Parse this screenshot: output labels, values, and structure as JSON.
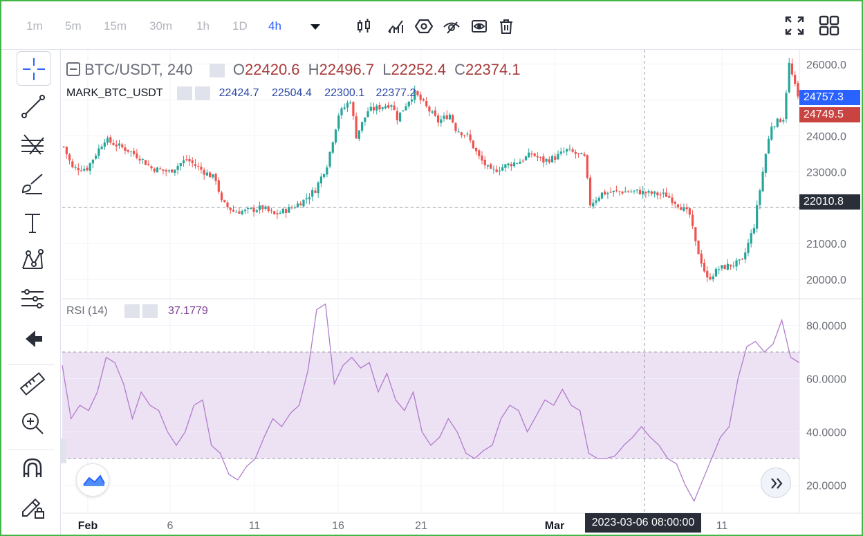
{
  "toolbar": {
    "timeframes": [
      "1m",
      "5m",
      "15m",
      "30m",
      "1h",
      "1D",
      "4h"
    ],
    "active_timeframe": "4h"
  },
  "legend": {
    "symbol": "BTC/USDT, 240",
    "open_label": "O",
    "open": "22420.6",
    "high_label": "H",
    "high": "22496.7",
    "low_label": "L",
    "low": "22252.4",
    "close_label": "C",
    "close": "22374.1",
    "mark_name": "MARK_BTC_USDT",
    "mark_values": [
      "22424.7",
      "22504.4",
      "22300.1",
      "22377.2"
    ]
  },
  "rsi": {
    "name": "RSI (14)",
    "value": "37.1779"
  },
  "price_tags": {
    "mark": "24757.3",
    "last": "24749.5",
    "crosshair": "22010.8",
    "crosshair_time": "2023-03-06 08:00:00"
  },
  "colors": {
    "up": "#26a69a",
    "down": "#ef5350",
    "rsi_line": "#b07ccb",
    "rsi_band": "#ede1f4",
    "accent": "#2962ff",
    "legend_red": "#a83b3b",
    "legend_blue": "#2c48a8",
    "rsi_value": "#7e3f98"
  },
  "chart_data": [
    {
      "type": "candlestick",
      "title": "BTC/USDT, 240",
      "x_labels": [
        "Feb",
        "6",
        "11",
        "16",
        "21",
        "Mar",
        "11"
      ],
      "y_ticks": [
        20000,
        21000,
        22000,
        23000,
        24000,
        25000,
        26000
      ],
      "y_tick_labels": [
        "20000.0",
        "21000.0",
        "23000.0",
        "24000.0",
        "26000.0"
      ],
      "ylim": [
        19500,
        26400
      ],
      "grid": true,
      "close_path": [
        [
          0,
          23700
        ],
        [
          3,
          23100
        ],
        [
          8,
          23100
        ],
        [
          14,
          23900
        ],
        [
          22,
          23600
        ],
        [
          26,
          23400
        ],
        [
          30,
          23100
        ],
        [
          36,
          23000
        ],
        [
          42,
          23350
        ],
        [
          48,
          23000
        ],
        [
          52,
          22800
        ],
        [
          54,
          22150
        ],
        [
          58,
          21900
        ],
        [
          62,
          21900
        ],
        [
          68,
          22000
        ],
        [
          72,
          21800
        ],
        [
          78,
          22000
        ],
        [
          82,
          22200
        ],
        [
          86,
          22500
        ],
        [
          90,
          23200
        ],
        [
          94,
          24600
        ],
        [
          98,
          25000
        ],
        [
          100,
          24000
        ],
        [
          104,
          24700
        ],
        [
          108,
          24800
        ],
        [
          112,
          24900
        ],
        [
          114,
          24500
        ],
        [
          118,
          25000
        ],
        [
          120,
          25200
        ],
        [
          124,
          24800
        ],
        [
          128,
          24400
        ],
        [
          132,
          24600
        ],
        [
          134,
          24200
        ],
        [
          138,
          24000
        ],
        [
          142,
          23400
        ],
        [
          146,
          23000
        ],
        [
          152,
          23200
        ],
        [
          156,
          23300
        ],
        [
          160,
          23500
        ],
        [
          164,
          23300
        ],
        [
          168,
          23400
        ],
        [
          172,
          23600
        ],
        [
          178,
          23400
        ],
        [
          180,
          22100
        ],
        [
          184,
          22400
        ],
        [
          190,
          22450
        ],
        [
          196,
          22450
        ],
        [
          200,
          22400
        ],
        [
          206,
          22350
        ],
        [
          210,
          22100
        ],
        [
          214,
          21800
        ],
        [
          216,
          21000
        ],
        [
          218,
          20500
        ],
        [
          220,
          20000
        ],
        [
          224,
          20300
        ],
        [
          228,
          20400
        ],
        [
          232,
          20500
        ],
        [
          236,
          21500
        ],
        [
          240,
          23500
        ],
        [
          242,
          24300
        ],
        [
          246,
          24500
        ],
        [
          248,
          26000
        ],
        [
          252,
          24750
        ]
      ]
    },
    {
      "type": "line",
      "title": "RSI (14)",
      "y_ticks": [
        20,
        40,
        60,
        80
      ],
      "y_tick_labels": [
        "20.0000",
        "40.0000",
        "60.0000",
        "80.0000"
      ],
      "ylim": [
        10,
        90
      ],
      "band": [
        30,
        70
      ],
      "grid": true,
      "values": [
        65,
        45,
        50,
        48,
        55,
        68,
        66,
        58,
        45,
        55,
        50,
        48,
        40,
        35,
        40,
        50,
        52,
        35,
        32,
        24,
        22,
        27,
        30,
        38,
        45,
        42,
        47,
        50,
        63,
        86,
        88,
        58,
        65,
        68,
        64,
        66,
        55,
        62,
        52,
        48,
        55,
        40,
        35,
        38,
        45,
        40,
        32,
        30,
        33,
        35,
        45,
        50,
        48,
        40,
        46,
        52,
        50,
        56,
        50,
        48,
        32,
        30,
        30,
        31,
        35,
        38,
        42,
        38,
        35,
        30,
        28,
        20,
        14,
        22,
        30,
        38,
        42,
        60,
        72,
        74,
        70,
        73,
        82,
        68,
        66
      ]
    }
  ]
}
